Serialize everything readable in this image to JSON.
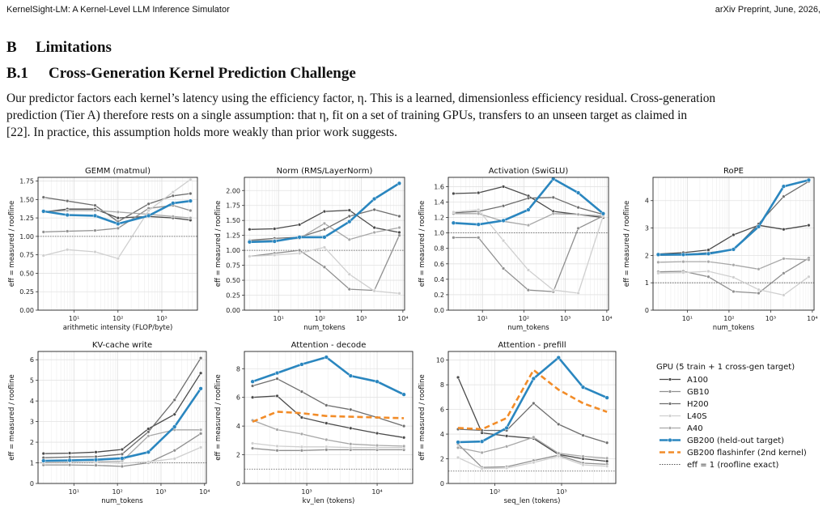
{
  "header": {
    "left": "KernelSight-LM: A Kernel-Level LLM Inference Simulator",
    "right": "arXiv Preprint, June, 2026,"
  },
  "section": {
    "number": "B",
    "title": "Limitations"
  },
  "subsection": {
    "number": "B.1",
    "title": "Cross-Generation Kernel Prediction Challenge"
  },
  "paragraph": [
    "Our predictor factors each kernel’s latency using the efficiency factor, η. This is a learned, dimensionless efficiency residual. Cross-generation",
    "prediction (Tier A) therefore rests on a single assumption: that η, fit on a set of training GPUs, transfers to an unseen target as claimed in",
    "[22]. In practice, this assumption holds more weakly than prior work suggests."
  ],
  "colors": {
    "A100": "#4a4a4a",
    "GB10": "#8f8f8f",
    "H200": "#6e6e6e",
    "L40S": "#cfcfcf",
    "A40": "#a8a8a8",
    "GB200": "#2a86bf",
    "flashinfer": "#f28c28",
    "refline": "#555555"
  },
  "legend": {
    "title": "GPU  (5 train  +  1 cross-gen target)",
    "entries": [
      {
        "key": "A100",
        "label": "A100"
      },
      {
        "key": "GB10",
        "label": "GB10"
      },
      {
        "key": "H200",
        "label": "H200"
      },
      {
        "key": "L40S",
        "label": "L40S"
      },
      {
        "key": "A40",
        "label": "A40"
      },
      {
        "key": "GB200",
        "label": "GB200  (held-out target)"
      },
      {
        "key": "flashinfer",
        "label": "GB200 flashinfer (2nd kernel)"
      },
      {
        "key": "refline",
        "label": "eff = 1 (roofline exact)"
      }
    ]
  },
  "chart_data": [
    {
      "type": "line",
      "title": "GEMM (matmul)",
      "xlabel": "arithmetic intensity (FLOP/byte)",
      "ylabel": "eff = measured / roofline",
      "xscale": "log",
      "xlim": [
        1.5,
        6500
      ],
      "ylim": [
        0,
        1.8
      ],
      "yticks": [
        0,
        0.25,
        0.5,
        0.75,
        1,
        1.25,
        1.5,
        1.75
      ],
      "ytick_labels": [
        "0.00",
        "0.25",
        "0.50",
        "0.75",
        "1.00",
        "1.25",
        "1.50",
        "1.75"
      ],
      "xticks": [
        10,
        100,
        1000
      ],
      "xtick_labels": [
        "10¹",
        "10²",
        "10³"
      ],
      "refline": 1,
      "legend": "none",
      "grid": true,
      "x": [
        2,
        7,
        30,
        100,
        500,
        1800,
        4500
      ],
      "series": [
        {
          "key": "A100",
          "values": [
            1.33,
            1.37,
            1.37,
            1.25,
            1.27,
            1.25,
            1.22
          ]
        },
        {
          "key": "H200",
          "values": [
            1.53,
            1.48,
            1.42,
            1.2,
            1.44,
            1.55,
            1.58
          ]
        },
        {
          "key": "GB10",
          "values": [
            1.06,
            1.07,
            1.08,
            1.11,
            1.38,
            1.42,
            1.35
          ]
        },
        {
          "key": "A40",
          "values": [
            1.33,
            1.35,
            1.35,
            1.33,
            1.3,
            1.27,
            1.25
          ]
        },
        {
          "key": "L40S",
          "values": [
            0.74,
            0.82,
            0.79,
            0.7,
            1.35,
            1.6,
            1.77
          ]
        },
        {
          "key": "GB200",
          "values": [
            1.34,
            1.29,
            1.28,
            1.17,
            1.28,
            1.45,
            1.48
          ]
        }
      ]
    },
    {
      "type": "line",
      "title": "Norm (RMS/LayerNorm)",
      "xlabel": "num_tokens",
      "ylabel": "eff = measured / roofline",
      "xscale": "log",
      "xlim": [
        1.5,
        11000
      ],
      "ylim": [
        0,
        2.22
      ],
      "yticks": [
        0,
        0.25,
        0.5,
        0.75,
        1,
        1.25,
        1.5,
        1.75,
        2
      ],
      "ytick_labels": [
        "0.00",
        "0.25",
        "0.50",
        "0.75",
        "1.00",
        "1.25",
        "1.50",
        "1.75",
        "2.00"
      ],
      "xticks": [
        10,
        100,
        1000,
        10000
      ],
      "xtick_labels": [
        "10¹",
        "10²",
        "10³",
        "10⁴"
      ],
      "refline": 1,
      "legend": "none",
      "grid": true,
      "x": [
        2,
        8,
        32,
        128,
        512,
        2048,
        8192
      ],
      "series": [
        {
          "key": "A100",
          "values": [
            1.35,
            1.36,
            1.43,
            1.65,
            1.67,
            1.38,
            1.3
          ]
        },
        {
          "key": "H200",
          "values": [
            1.17,
            1.2,
            1.22,
            1.35,
            1.57,
            1.68,
            1.57
          ]
        },
        {
          "key": "GB10",
          "values": [
            0.9,
            0.95,
            1.0,
            0.72,
            0.35,
            0.33,
            1.25
          ]
        },
        {
          "key": "A40",
          "values": [
            1.16,
            1.17,
            1.2,
            1.45,
            1.18,
            1.3,
            1.38
          ]
        },
        {
          "key": "L40S",
          "values": [
            0.9,
            0.92,
            0.95,
            1.05,
            0.6,
            0.32,
            0.28
          ]
        },
        {
          "key": "GB200",
          "values": [
            1.14,
            1.15,
            1.22,
            1.22,
            1.48,
            1.86,
            2.12
          ]
        }
      ]
    },
    {
      "type": "line",
      "title": "Activation (SwiGLU)",
      "xlabel": "num_tokens",
      "ylabel": "eff = measured / roofline",
      "xscale": "log",
      "xlim": [
        1.5,
        11000
      ],
      "ylim": [
        0,
        1.72
      ],
      "yticks": [
        0,
        0.2,
        0.4,
        0.6,
        0.8,
        1,
        1.2,
        1.4,
        1.6
      ],
      "ytick_labels": [
        "0.0",
        "0.2",
        "0.4",
        "0.6",
        "0.8",
        "1.0",
        "1.2",
        "1.4",
        "1.6"
      ],
      "xticks": [
        10,
        100,
        1000,
        10000
      ],
      "xtick_labels": [
        "10¹",
        "10²",
        "10³",
        "10⁴"
      ],
      "refline": 1,
      "legend": "none",
      "grid": true,
      "x": [
        2,
        8,
        32,
        128,
        512,
        2048,
        8192
      ],
      "series": [
        {
          "key": "A100",
          "values": [
            1.51,
            1.52,
            1.6,
            1.48,
            1.28,
            1.24,
            1.2
          ]
        },
        {
          "key": "H200",
          "values": [
            1.26,
            1.28,
            1.35,
            1.45,
            1.46,
            1.33,
            1.24
          ]
        },
        {
          "key": "GB10",
          "values": [
            0.94,
            0.94,
            0.54,
            0.26,
            0.24,
            1.06,
            1.22
          ]
        },
        {
          "key": "A40",
          "values": [
            1.25,
            1.25,
            1.15,
            1.1,
            1.25,
            1.24,
            1.22
          ]
        },
        {
          "key": "L40S",
          "values": [
            1.27,
            1.3,
            0.9,
            0.52,
            0.26,
            0.22,
            1.22
          ]
        },
        {
          "key": "GB200",
          "values": [
            1.13,
            1.11,
            1.16,
            1.3,
            1.7,
            1.52,
            1.25
          ]
        }
      ]
    },
    {
      "type": "line",
      "title": "RoPE",
      "xlabel": "num_tokens",
      "ylabel": "eff = measured / roofline",
      "xscale": "log",
      "xlim": [
        1.5,
        11000
      ],
      "ylim": [
        0,
        4.85
      ],
      "yticks": [
        0,
        1,
        2,
        3,
        4
      ],
      "ytick_labels": [
        "0",
        "1",
        "2",
        "3",
        "4"
      ],
      "xticks": [
        10,
        100,
        1000,
        10000
      ],
      "xtick_labels": [
        "10¹",
        "10²",
        "10³",
        "10⁴"
      ],
      "refline": 1,
      "legend": "none",
      "grid": true,
      "x": [
        2,
        8,
        32,
        128,
        512,
        2048,
        8192
      ],
      "series": [
        {
          "key": "A100",
          "values": [
            2.05,
            2.1,
            2.2,
            2.75,
            3.1,
            2.95,
            3.1
          ]
        },
        {
          "key": "H200",
          "values": [
            2.0,
            2.02,
            2.1,
            2.2,
            3.15,
            4.15,
            4.7
          ]
        },
        {
          "key": "GB10",
          "values": [
            1.4,
            1.42,
            1.22,
            0.68,
            0.62,
            1.35,
            1.9
          ]
        },
        {
          "key": "A40",
          "values": [
            1.75,
            1.77,
            1.77,
            1.65,
            1.5,
            1.88,
            1.84
          ]
        },
        {
          "key": "L40S",
          "values": [
            1.35,
            1.37,
            1.42,
            1.2,
            0.75,
            0.55,
            1.22
          ]
        },
        {
          "key": "GB200",
          "values": [
            2.03,
            2.03,
            2.06,
            2.22,
            3.05,
            4.52,
            4.75
          ]
        }
      ]
    },
    {
      "type": "line",
      "title": "KV-cache write",
      "xlabel": "num_tokens",
      "ylabel": "eff = measured / roofline",
      "xscale": "log",
      "xlim": [
        1.5,
        11000
      ],
      "ylim": [
        0,
        6.4
      ],
      "yticks": [
        0,
        1,
        2,
        3,
        4,
        5,
        6
      ],
      "ytick_labels": [
        "0",
        "1",
        "2",
        "3",
        "4",
        "5",
        "6"
      ],
      "xticks": [
        10,
        100,
        1000,
        10000
      ],
      "xtick_labels": [
        "10¹",
        "10²",
        "10³",
        "10⁴"
      ],
      "refline": 1,
      "legend": "none",
      "grid": true,
      "x": [
        2,
        8,
        32,
        128,
        512,
        2048,
        8192
      ],
      "series": [
        {
          "key": "A100",
          "values": [
            1.45,
            1.47,
            1.52,
            1.65,
            2.65,
            3.35,
            5.35
          ]
        },
        {
          "key": "H200",
          "values": [
            1.25,
            1.28,
            1.3,
            1.42,
            2.5,
            4.05,
            6.08
          ]
        },
        {
          "key": "GB10",
          "values": [
            0.9,
            0.9,
            0.88,
            0.83,
            1.0,
            1.6,
            2.42
          ]
        },
        {
          "key": "A40",
          "values": [
            1.0,
            1.02,
            1.05,
            1.08,
            2.3,
            2.6,
            2.6
          ]
        },
        {
          "key": "L40S",
          "values": [
            1.05,
            1.05,
            1.02,
            0.98,
            1.05,
            1.2,
            1.75
          ]
        },
        {
          "key": "GB200",
          "values": [
            1.1,
            1.12,
            1.15,
            1.22,
            1.52,
            2.75,
            4.6
          ]
        }
      ]
    },
    {
      "type": "line",
      "title": "Attention - decode",
      "xlabel": "kv_len (tokens)",
      "ylabel": "eff = measured / roofline",
      "xscale": "log",
      "xlim": [
        130,
        32000
      ],
      "ylim": [
        0,
        9.2
      ],
      "yticks": [
        0,
        2,
        4,
        6,
        8
      ],
      "ytick_labels": [
        "0",
        "2",
        "4",
        "6",
        "8"
      ],
      "xticks": [
        1000,
        10000
      ],
      "xtick_labels": [
        "10³",
        "10⁴"
      ],
      "refline": 1,
      "legend": "none",
      "grid": true,
      "x": [
        170,
        380,
        850,
        1900,
        4200,
        10000,
        24000
      ],
      "series": [
        {
          "key": "A100",
          "values": [
            6.0,
            6.1,
            4.6,
            4.2,
            3.85,
            3.5,
            3.2
          ]
        },
        {
          "key": "H200",
          "values": [
            6.8,
            7.3,
            6.4,
            5.45,
            5.15,
            4.6,
            4.0
          ]
        },
        {
          "key": "GB10",
          "values": [
            2.45,
            2.3,
            2.3,
            2.35,
            2.35,
            2.35,
            2.35
          ]
        },
        {
          "key": "L40S",
          "values": [
            2.8,
            2.6,
            2.55,
            2.55,
            2.5,
            2.5,
            2.5
          ]
        },
        {
          "key": "A40",
          "values": [
            4.4,
            3.75,
            3.45,
            3.05,
            2.75,
            2.65,
            2.6
          ]
        },
        {
          "key": "GB200",
          "values": [
            7.1,
            7.7,
            8.3,
            8.8,
            7.5,
            7.1,
            6.2
          ]
        },
        {
          "key": "flashinfer",
          "values": [
            4.3,
            5.0,
            4.9,
            4.7,
            4.65,
            4.6,
            4.55
          ]
        }
      ]
    },
    {
      "type": "line",
      "title": "Attention - prefill",
      "xlabel": "seq_len (tokens)",
      "ylabel": "eff = measured / roofline",
      "xscale": "log",
      "xlim": [
        20,
        6500
      ],
      "ylim": [
        0,
        10.7
      ],
      "yticks": [
        0,
        2,
        4,
        6,
        8,
        10
      ],
      "ytick_labels": [
        "0",
        "2",
        "4",
        "6",
        "8",
        "10"
      ],
      "xticks": [
        100,
        1000
      ],
      "xtick_labels": [
        "10²",
        "10³"
      ],
      "refline": 1,
      "legend": "none",
      "grid": true,
      "x": [
        28,
        64,
        150,
        380,
        900,
        2100,
        4800
      ],
      "series": [
        {
          "key": "A100",
          "values": [
            8.6,
            4.1,
            3.85,
            3.65,
            2.35,
            2.0,
            1.8
          ]
        },
        {
          "key": "H200",
          "values": [
            4.4,
            4.3,
            4.3,
            6.5,
            4.8,
            3.9,
            3.3
          ]
        },
        {
          "key": "GB10",
          "values": [
            3.2,
            1.3,
            1.35,
            1.85,
            2.3,
            1.65,
            1.55
          ]
        },
        {
          "key": "L40S",
          "values": [
            2.1,
            1.2,
            1.25,
            1.7,
            2.2,
            1.5,
            1.4
          ]
        },
        {
          "key": "A40",
          "values": [
            2.9,
            2.5,
            3.0,
            3.75,
            2.45,
            2.2,
            2.05
          ]
        },
        {
          "key": "GB200",
          "values": [
            3.35,
            3.4,
            4.5,
            8.5,
            10.2,
            7.8,
            6.95
          ]
        },
        {
          "key": "flashinfer",
          "values": [
            4.5,
            4.4,
            5.3,
            9.2,
            7.6,
            6.5,
            5.8
          ]
        }
      ]
    }
  ]
}
